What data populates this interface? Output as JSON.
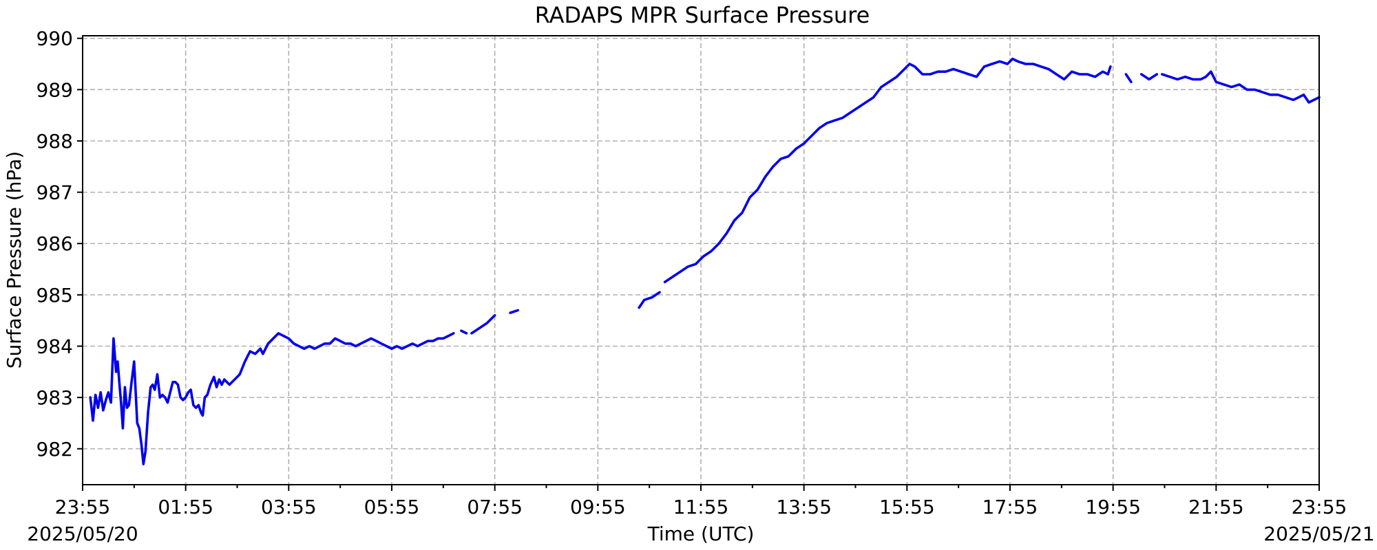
{
  "chart_data": {
    "type": "line",
    "title": "RADAPS MPR Surface Pressure",
    "xlabel": "Time (UTC)",
    "ylabel": "Surface Pressure (hPa)",
    "start_date_label": "2025/05/20",
    "end_date_label": "2025/05/21",
    "x_tick_labels": [
      "23:55",
      "01:55",
      "03:55",
      "05:55",
      "07:55",
      "09:55",
      "11:55",
      "13:55",
      "15:55",
      "17:55",
      "19:55",
      "21:55",
      "23:55"
    ],
    "x_tick_hours": [
      0,
      2,
      4,
      6,
      8,
      10,
      12,
      14,
      16,
      18,
      20,
      22,
      24
    ],
    "xlim_hours": [
      0,
      24
    ],
    "y_ticks": [
      982,
      983,
      984,
      985,
      986,
      987,
      988,
      989,
      990
    ],
    "ylim": [
      981.3,
      990.05
    ],
    "grid": true,
    "series_color": "#0000ee",
    "series": [
      {
        "segments": [
          [
            [
              0.15,
              983.0
            ],
            [
              0.2,
              982.55
            ],
            [
              0.25,
              983.05
            ],
            [
              0.3,
              982.8
            ],
            [
              0.35,
              983.1
            ],
            [
              0.4,
              982.75
            ],
            [
              0.45,
              982.95
            ],
            [
              0.5,
              983.1
            ],
            [
              0.55,
              982.9
            ],
            [
              0.6,
              984.15
            ],
            [
              0.65,
              983.5
            ],
            [
              0.68,
              983.7
            ],
            [
              0.72,
              983.2
            ],
            [
              0.75,
              982.85
            ],
            [
              0.78,
              982.4
            ],
            [
              0.82,
              983.2
            ],
            [
              0.86,
              982.8
            ],
            [
              0.9,
              982.85
            ],
            [
              0.95,
              983.3
            ],
            [
              1.0,
              983.7
            ],
            [
              1.03,
              983.1
            ],
            [
              1.06,
              982.5
            ],
            [
              1.1,
              982.4
            ],
            [
              1.14,
              982.1
            ],
            [
              1.18,
              981.7
            ],
            [
              1.22,
              981.95
            ],
            [
              1.27,
              982.7
            ],
            [
              1.32,
              983.2
            ],
            [
              1.36,
              983.25
            ],
            [
              1.4,
              983.15
            ],
            [
              1.45,
              983.45
            ],
            [
              1.5,
              983.0
            ],
            [
              1.55,
              983.05
            ],
            [
              1.6,
              983.0
            ],
            [
              1.65,
              982.9
            ],
            [
              1.7,
              983.1
            ],
            [
              1.75,
              983.3
            ],
            [
              1.8,
              983.3
            ],
            [
              1.85,
              983.25
            ],
            [
              1.9,
              983.0
            ],
            [
              1.95,
              982.95
            ],
            [
              2.0,
              983.0
            ],
            [
              2.05,
              983.1
            ],
            [
              2.1,
              983.15
            ],
            [
              2.15,
              982.85
            ],
            [
              2.2,
              982.8
            ],
            [
              2.25,
              982.85
            ],
            [
              2.3,
              982.7
            ],
            [
              2.33,
              982.65
            ],
            [
              2.37,
              983.0
            ],
            [
              2.42,
              983.05
            ],
            [
              2.48,
              983.25
            ],
            [
              2.55,
              983.4
            ],
            [
              2.6,
              983.2
            ],
            [
              2.65,
              983.35
            ],
            [
              2.7,
              983.25
            ],
            [
              2.75,
              983.35
            ],
            [
              2.85,
              983.25
            ],
            [
              2.95,
              983.35
            ],
            [
              3.05,
              983.45
            ],
            [
              3.15,
              983.7
            ],
            [
              3.25,
              983.9
            ],
            [
              3.35,
              983.85
            ],
            [
              3.45,
              983.95
            ],
            [
              3.5,
              983.85
            ],
            [
              3.6,
              984.05
            ],
            [
              3.7,
              984.15
            ],
            [
              3.8,
              984.25
            ],
            [
              3.9,
              984.2
            ],
            [
              4.0,
              984.15
            ],
            [
              4.1,
              984.05
            ],
            [
              4.2,
              984.0
            ],
            [
              4.3,
              983.95
            ],
            [
              4.4,
              984.0
            ],
            [
              4.5,
              983.95
            ],
            [
              4.6,
              984.0
            ],
            [
              4.7,
              984.05
            ],
            [
              4.8,
              984.05
            ],
            [
              4.9,
              984.15
            ],
            [
              5.0,
              984.1
            ],
            [
              5.1,
              984.05
            ],
            [
              5.2,
              984.05
            ],
            [
              5.3,
              984.0
            ],
            [
              5.4,
              984.05
            ],
            [
              5.5,
              984.1
            ],
            [
              5.6,
              984.15
            ],
            [
              5.7,
              984.1
            ],
            [
              5.8,
              984.05
            ],
            [
              5.9,
              984.0
            ],
            [
              6.0,
              983.95
            ],
            [
              6.1,
              984.0
            ],
            [
              6.2,
              983.95
            ],
            [
              6.3,
              984.0
            ],
            [
              6.4,
              984.05
            ],
            [
              6.5,
              984.0
            ],
            [
              6.6,
              984.05
            ],
            [
              6.7,
              984.1
            ],
            [
              6.8,
              984.1
            ],
            [
              6.9,
              984.15
            ],
            [
              7.0,
              984.15
            ],
            [
              7.1,
              984.2
            ],
            [
              7.2,
              984.25
            ]
          ],
          [
            [
              7.35,
              984.3
            ],
            [
              7.45,
              984.25
            ]
          ],
          [
            [
              7.55,
              984.25
            ],
            [
              7.7,
              984.35
            ],
            [
              7.85,
              984.45
            ],
            [
              8.0,
              984.6
            ]
          ],
          [
            [
              8.3,
              984.65
            ],
            [
              8.45,
              984.7
            ]
          ],
          [
            [
              10.8,
              984.75
            ],
            [
              10.9,
              984.9
            ],
            [
              11.05,
              984.95
            ],
            [
              11.2,
              985.05
            ]
          ],
          [
            [
              11.3,
              985.25
            ],
            [
              11.45,
              985.35
            ],
            [
              11.6,
              985.45
            ],
            [
              11.75,
              985.55
            ],
            [
              11.9,
              985.6
            ],
            [
              12.05,
              985.75
            ],
            [
              12.2,
              985.85
            ],
            [
              12.35,
              986.0
            ],
            [
              12.5,
              986.2
            ],
            [
              12.65,
              986.45
            ],
            [
              12.8,
              986.6
            ],
            [
              12.95,
              986.9
            ],
            [
              13.1,
              987.05
            ],
            [
              13.25,
              987.3
            ],
            [
              13.4,
              987.5
            ],
            [
              13.55,
              987.65
            ],
            [
              13.7,
              987.7
            ],
            [
              13.85,
              987.85
            ],
            [
              14.0,
              987.95
            ],
            [
              14.15,
              988.1
            ],
            [
              14.3,
              988.25
            ],
            [
              14.45,
              988.35
            ],
            [
              14.6,
              988.4
            ],
            [
              14.75,
              988.45
            ],
            [
              14.9,
              988.55
            ],
            [
              15.05,
              988.65
            ],
            [
              15.2,
              988.75
            ],
            [
              15.35,
              988.85
            ],
            [
              15.5,
              989.05
            ],
            [
              15.65,
              989.15
            ],
            [
              15.8,
              989.25
            ],
            [
              15.95,
              989.4
            ],
            [
              16.05,
              989.5
            ],
            [
              16.15,
              989.45
            ],
            [
              16.3,
              989.3
            ],
            [
              16.45,
              989.3
            ],
            [
              16.6,
              989.35
            ],
            [
              16.75,
              989.35
            ],
            [
              16.9,
              989.4
            ],
            [
              17.05,
              989.35
            ],
            [
              17.2,
              989.3
            ],
            [
              17.35,
              989.25
            ],
            [
              17.5,
              989.45
            ],
            [
              17.65,
              989.5
            ],
            [
              17.8,
              989.55
            ],
            [
              17.95,
              989.5
            ],
            [
              18.05,
              989.6
            ],
            [
              18.15,
              989.55
            ],
            [
              18.3,
              989.5
            ],
            [
              18.45,
              989.5
            ],
            [
              18.6,
              989.45
            ],
            [
              18.75,
              989.4
            ],
            [
              18.9,
              989.3
            ],
            [
              19.05,
              989.2
            ],
            [
              19.2,
              989.35
            ],
            [
              19.35,
              989.3
            ],
            [
              19.5,
              989.3
            ],
            [
              19.65,
              989.25
            ],
            [
              19.8,
              989.35
            ],
            [
              19.9,
              989.3
            ],
            [
              19.95,
              989.45
            ]
          ],
          [
            [
              20.25,
              989.3
            ],
            [
              20.35,
              989.15
            ]
          ],
          [
            [
              20.55,
              989.3
            ],
            [
              20.7,
              989.2
            ],
            [
              20.85,
              989.3
            ]
          ],
          [
            [
              20.95,
              989.3
            ],
            [
              21.1,
              989.25
            ],
            [
              21.25,
              989.2
            ],
            [
              21.4,
              989.25
            ],
            [
              21.55,
              989.2
            ],
            [
              21.7,
              989.2
            ],
            [
              21.8,
              989.25
            ],
            [
              21.9,
              989.35
            ],
            [
              22.0,
              989.15
            ],
            [
              22.15,
              989.1
            ],
            [
              22.3,
              989.05
            ],
            [
              22.45,
              989.1
            ],
            [
              22.6,
              989.0
            ],
            [
              22.75,
              989.0
            ],
            [
              22.9,
              988.95
            ],
            [
              23.05,
              988.9
            ],
            [
              23.2,
              988.9
            ],
            [
              23.35,
              988.85
            ],
            [
              23.5,
              988.8
            ],
            [
              23.6,
              988.85
            ],
            [
              23.7,
              988.9
            ],
            [
              23.8,
              988.75
            ],
            [
              23.9,
              988.8
            ],
            [
              24.0,
              988.85
            ]
          ]
        ]
      }
    ]
  }
}
